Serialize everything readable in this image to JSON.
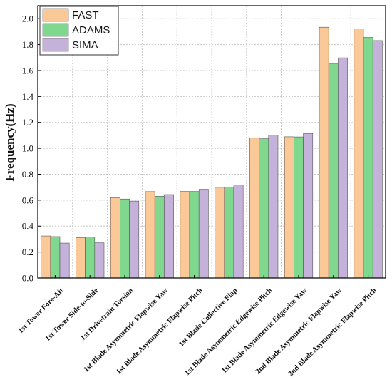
{
  "chart_data": {
    "type": "bar",
    "ylabel": "Frequency(Hz)",
    "xlabel": "",
    "ylim": [
      0,
      2.1
    ],
    "yticks": [
      "0.0",
      "0.2",
      "0.4",
      "0.6",
      "0.8",
      "1.0",
      "1.2",
      "1.4",
      "1.6",
      "1.8",
      "2.0"
    ],
    "grid": true,
    "legend_position": "top-left",
    "categories": [
      "1st Tower Fore-Aft",
      "1st Tower Side-to-Side",
      "1st Drivetrain Torsion",
      "1st Blade Asymmetric Flapwise Yaw",
      "1st Blade Asymmetric Flapwise Pitch",
      "1st Blade Collective Flap",
      "1st Blade Asymmetric Edgewise Pitch",
      "1st Blade Asymmetric Edgewise Yaw",
      "2nd Blade Asymmetric Flapwise Yaw",
      "2nd Blade Asymmetric Flapwise Pitch"
    ],
    "series": [
      {
        "name": "FAST",
        "color": "#fbc897",
        "values": [
          0.324,
          0.312,
          0.62,
          0.666,
          0.667,
          0.699,
          1.079,
          1.089,
          1.934,
          1.922
        ]
      },
      {
        "name": "ADAMS",
        "color": "#80d88e",
        "values": [
          0.319,
          0.316,
          0.609,
          0.63,
          0.667,
          0.702,
          1.074,
          1.088,
          1.651,
          1.855
        ]
      },
      {
        "name": "SIMA",
        "color": "#c4b2da",
        "values": [
          0.269,
          0.271,
          0.593,
          0.643,
          0.684,
          0.717,
          1.101,
          1.115,
          1.698,
          1.831
        ]
      }
    ]
  }
}
